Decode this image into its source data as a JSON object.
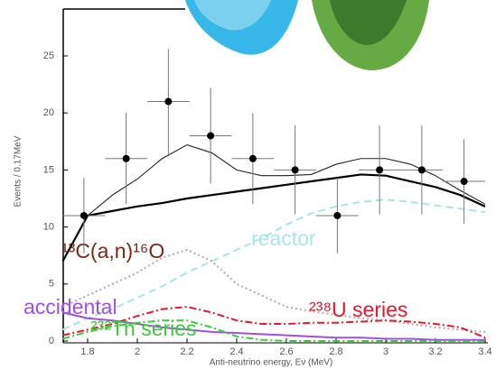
{
  "chart_data": {
    "type": "line",
    "y_label": "Events / 0.17MeV",
    "x_label": "Anti-neutrino energy, Eν (MeV)",
    "xlim": [
      1.7,
      3.4
    ],
    "ylim": [
      0,
      29
    ],
    "xticks": [
      1.8,
      2,
      2.2,
      2.4,
      2.6,
      2.8,
      3,
      3.2,
      3.4
    ],
    "yticks": [
      0,
      5,
      10,
      15,
      20,
      25
    ],
    "x": [
      1.7,
      1.8,
      1.9,
      2.0,
      2.1,
      2.2,
      2.3,
      2.4,
      2.5,
      2.6,
      2.7,
      2.8,
      2.9,
      3.0,
      3.1,
      3.2,
      3.3,
      3.4
    ],
    "series": [
      {
        "color": "#222222",
        "linestyle": "solid",
        "values": [
          7,
          11,
          12.8,
          14.2,
          16,
          17.2,
          16.5,
          15,
          14.5,
          14.5,
          14.6,
          15.5,
          16,
          16,
          15.5,
          14.5,
          13.2,
          12
        ]
      },
      {
        "color": "#000000",
        "linestyle": "solid",
        "values": [
          7,
          11,
          11.4,
          11.8,
          12.1,
          12.5,
          12.8,
          13.1,
          13.4,
          13.7,
          14,
          14.3,
          14.6,
          14.5,
          14,
          13.5,
          12.8,
          11.8
        ]
      },
      {
        "name": "reactor",
        "color": "#a8e6e4",
        "linestyle": "dashed",
        "values": [
          1,
          2,
          2.8,
          3.8,
          4.8,
          6,
          7,
          8,
          9,
          10.2,
          11.2,
          11.8,
          12.2,
          12.4,
          12.2,
          11.9,
          11.6,
          11.3
        ]
      },
      {
        "name": "¹³C(a,n)¹⁶O",
        "color": "#c8a0a0",
        "linestyle": "dotted",
        "values": [
          3,
          4,
          5,
          6,
          7.3,
          8,
          7,
          5,
          4,
          3,
          2.6,
          2.3,
          2,
          1.8,
          1.5,
          1.2,
          1,
          0.8
        ]
      },
      {
        "name": "accidental",
        "color": "#a050e0",
        "linestyle": "solid",
        "values": [
          2.5,
          2,
          1.8,
          1.5,
          1.2,
          1,
          0.8,
          0.7,
          0.6,
          0.5,
          0.4,
          0.3,
          0.3,
          0.2,
          0.2,
          0.1,
          0.1,
          0.1
        ]
      },
      {
        "name": "²³⁸U series",
        "color": "#e8182c",
        "linestyle": "dashdot",
        "values": [
          0.5,
          1,
          1.5,
          2.2,
          2.8,
          3,
          2.5,
          1.8,
          1.5,
          1.5,
          1.6,
          1.6,
          1.7,
          1.8,
          1.7,
          1.5,
          1.2,
          0.3
        ]
      },
      {
        "name": "²³²Th series",
        "color": "#3cc83c",
        "linestyle": "dashdot",
        "values": [
          0.2,
          0.8,
          1.3,
          1.6,
          1.8,
          1.8,
          1.2,
          0.4,
          0.1,
          0,
          0,
          0,
          0,
          0,
          0,
          0,
          0,
          0
        ]
      }
    ],
    "points": {
      "x": [
        1.785,
        1.955,
        2.125,
        2.295,
        2.465,
        2.635,
        2.805,
        2.975,
        3.145,
        3.315
      ],
      "values": [
        11,
        16,
        21,
        18,
        16,
        15,
        11,
        15,
        15,
        14
      ],
      "yerr": [
        3.3,
        4,
        4.6,
        4.2,
        4,
        3.9,
        3.3,
        3.9,
        3.9,
        3.7
      ],
      "xerr": 0.085
    }
  }
}
